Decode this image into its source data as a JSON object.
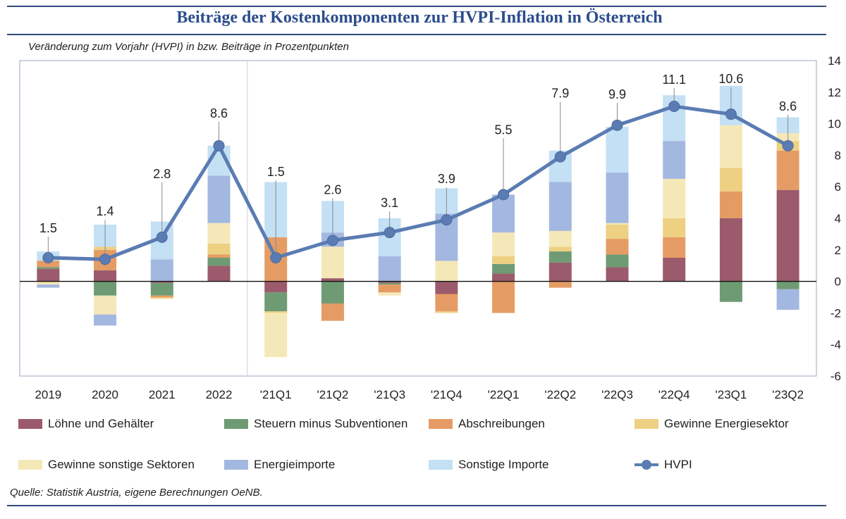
{
  "title": "Beiträge der Kostenkomponenten zur HVPI-Inflation in Österreich",
  "subtitle": "Veränderung zum Vorjahr (HVPI) in  bzw. Beiträge in Prozentpunkten",
  "source": "Quelle: Statistik Austria, eigene Berechnungen OeNB.",
  "chart_data": {
    "type": "bar",
    "stacked": true,
    "categories": [
      "2019",
      "2020",
      "2021",
      "2022",
      "'21Q1",
      "'21Q2",
      "'21Q3",
      "'21Q4",
      "'22Q1",
      "'22Q2",
      "'22Q3",
      "'22Q4",
      "'23Q1",
      "'23Q2"
    ],
    "ylim": [
      -6,
      14
    ],
    "yticks": [
      -6,
      -4,
      -2,
      0,
      2,
      4,
      6,
      8,
      10,
      12,
      14
    ],
    "y_axis_side": "right",
    "grid": false,
    "series": [
      {
        "name": "Löhne und Gehälter",
        "color": "#9b5b6c",
        "values": [
          0.8,
          0.7,
          -0.1,
          1.0,
          -0.7,
          0.2,
          -0.1,
          -0.8,
          0.5,
          1.2,
          0.9,
          1.5,
          4.0,
          5.8
        ]
      },
      {
        "name": "Steuern minus Subventionen",
        "color": "#6e9b73",
        "values": [
          0.1,
          -0.9,
          -0.8,
          0.5,
          -1.2,
          -1.4,
          -0.1,
          0.0,
          0.6,
          0.7,
          0.8,
          0.0,
          -1.3,
          -0.5
        ]
      },
      {
        "name": "Abschreibungen",
        "color": "#e59c64",
        "values": [
          0.4,
          1.3,
          -0.1,
          0.2,
          2.8,
          -1.1,
          -0.5,
          -1.1,
          -2.0,
          -0.4,
          1.0,
          1.3,
          1.7,
          2.5
        ]
      },
      {
        "name": "Gewinne Energiesektor",
        "color": "#eed083",
        "values": [
          0.0,
          0.2,
          -0.1,
          0.7,
          -0.1,
          0.0,
          0.0,
          -0.1,
          0.5,
          0.3,
          0.9,
          1.2,
          1.5,
          0.6
        ]
      },
      {
        "name": "Gewinne sonstige Sektoren",
        "color": "#f5e8b8",
        "values": [
          -0.2,
          -1.2,
          0.0,
          1.3,
          -2.8,
          2.0,
          -0.2,
          1.3,
          1.5,
          1.0,
          0.1,
          2.5,
          2.7,
          0.5
        ]
      },
      {
        "name": "Energieimporte",
        "color": "#a3b8e0",
        "values": [
          -0.2,
          -0.7,
          1.4,
          3.0,
          0.0,
          0.9,
          1.6,
          3.0,
          2.4,
          3.1,
          3.2,
          2.4,
          0.0,
          -1.3
        ]
      },
      {
        "name": "Sonstige Importe",
        "color": "#c3e0f4",
        "values": [
          0.6,
          1.4,
          2.4,
          1.9,
          3.5,
          2.0,
          2.4,
          1.6,
          0.0,
          2.0,
          2.9,
          2.9,
          2.5,
          1.0
        ]
      }
    ],
    "line": {
      "name": "HVPI",
      "color": "#5a7cb2",
      "values": [
        1.5,
        1.4,
        2.8,
        8.6,
        1.5,
        2.6,
        3.1,
        3.9,
        5.5,
        7.9,
        9.9,
        11.1,
        10.6,
        8.6
      ],
      "labels": [
        "1.5",
        "1.4",
        "2.8",
        "8.6",
        "1.5",
        "2.6",
        "3.1",
        "3.9",
        "5.5",
        "7.9",
        "9.9",
        "11.1",
        "10.6",
        "8.6"
      ]
    },
    "legend_placement": "bottom"
  }
}
